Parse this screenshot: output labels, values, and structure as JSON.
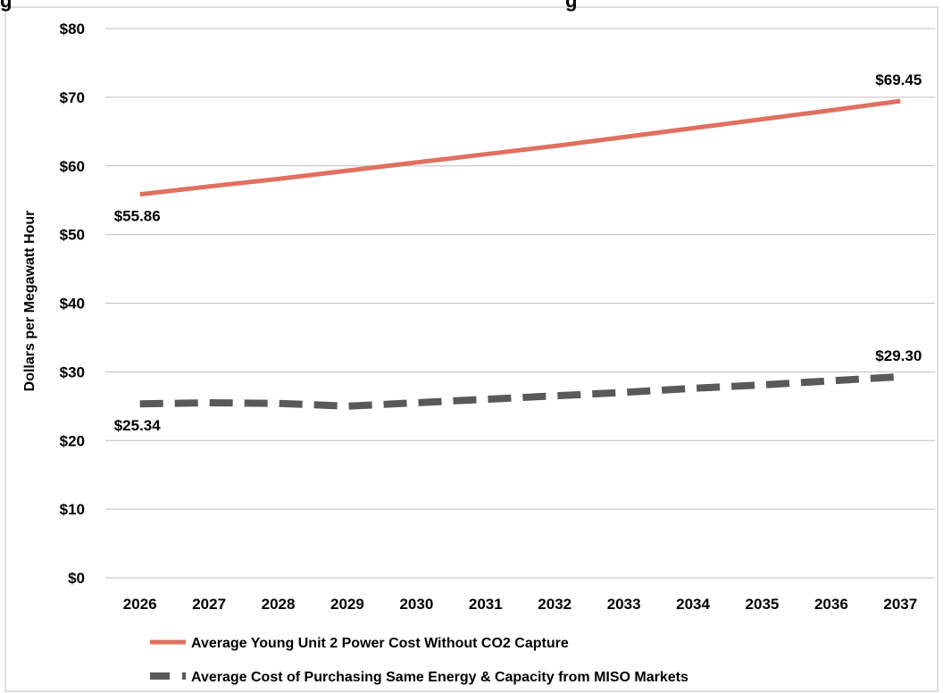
{
  "header": {
    "fragment_left": "g",
    "fragment_right": "g"
  },
  "chart_data": {
    "type": "line",
    "title": "",
    "xlabel": "",
    "ylabel": "Dollars per Megawatt Hour",
    "x": [
      "2026",
      "2027",
      "2028",
      "2029",
      "2030",
      "2031",
      "2032",
      "2033",
      "2034",
      "2035",
      "2036",
      "2037"
    ],
    "ylim": [
      0,
      80
    ],
    "yticks": [
      "$0",
      "$10",
      "$20",
      "$30",
      "$40",
      "$50",
      "$60",
      "$70",
      "$80"
    ],
    "grid": true,
    "legend_position": "bottom",
    "series": [
      {
        "name": "Average Young Unit 2 Power Cost Without CO2 Capture",
        "color": "#E07060",
        "style": "solid",
        "values": [
          55.86,
          57.0,
          58.1,
          59.3,
          60.5,
          61.7,
          62.9,
          64.2,
          65.5,
          66.8,
          68.1,
          69.45
        ],
        "start_label": "$55.86",
        "end_label": "$69.45"
      },
      {
        "name": "Average Cost of Purchasing Same Energy & Capacity from MISO Markets",
        "color": "#595959",
        "style": "dashed",
        "values": [
          25.34,
          25.5,
          25.4,
          25.0,
          25.5,
          26.0,
          26.5,
          27.0,
          27.6,
          28.1,
          28.7,
          29.3
        ],
        "start_label": "$25.34",
        "end_label": "$29.30"
      }
    ]
  }
}
